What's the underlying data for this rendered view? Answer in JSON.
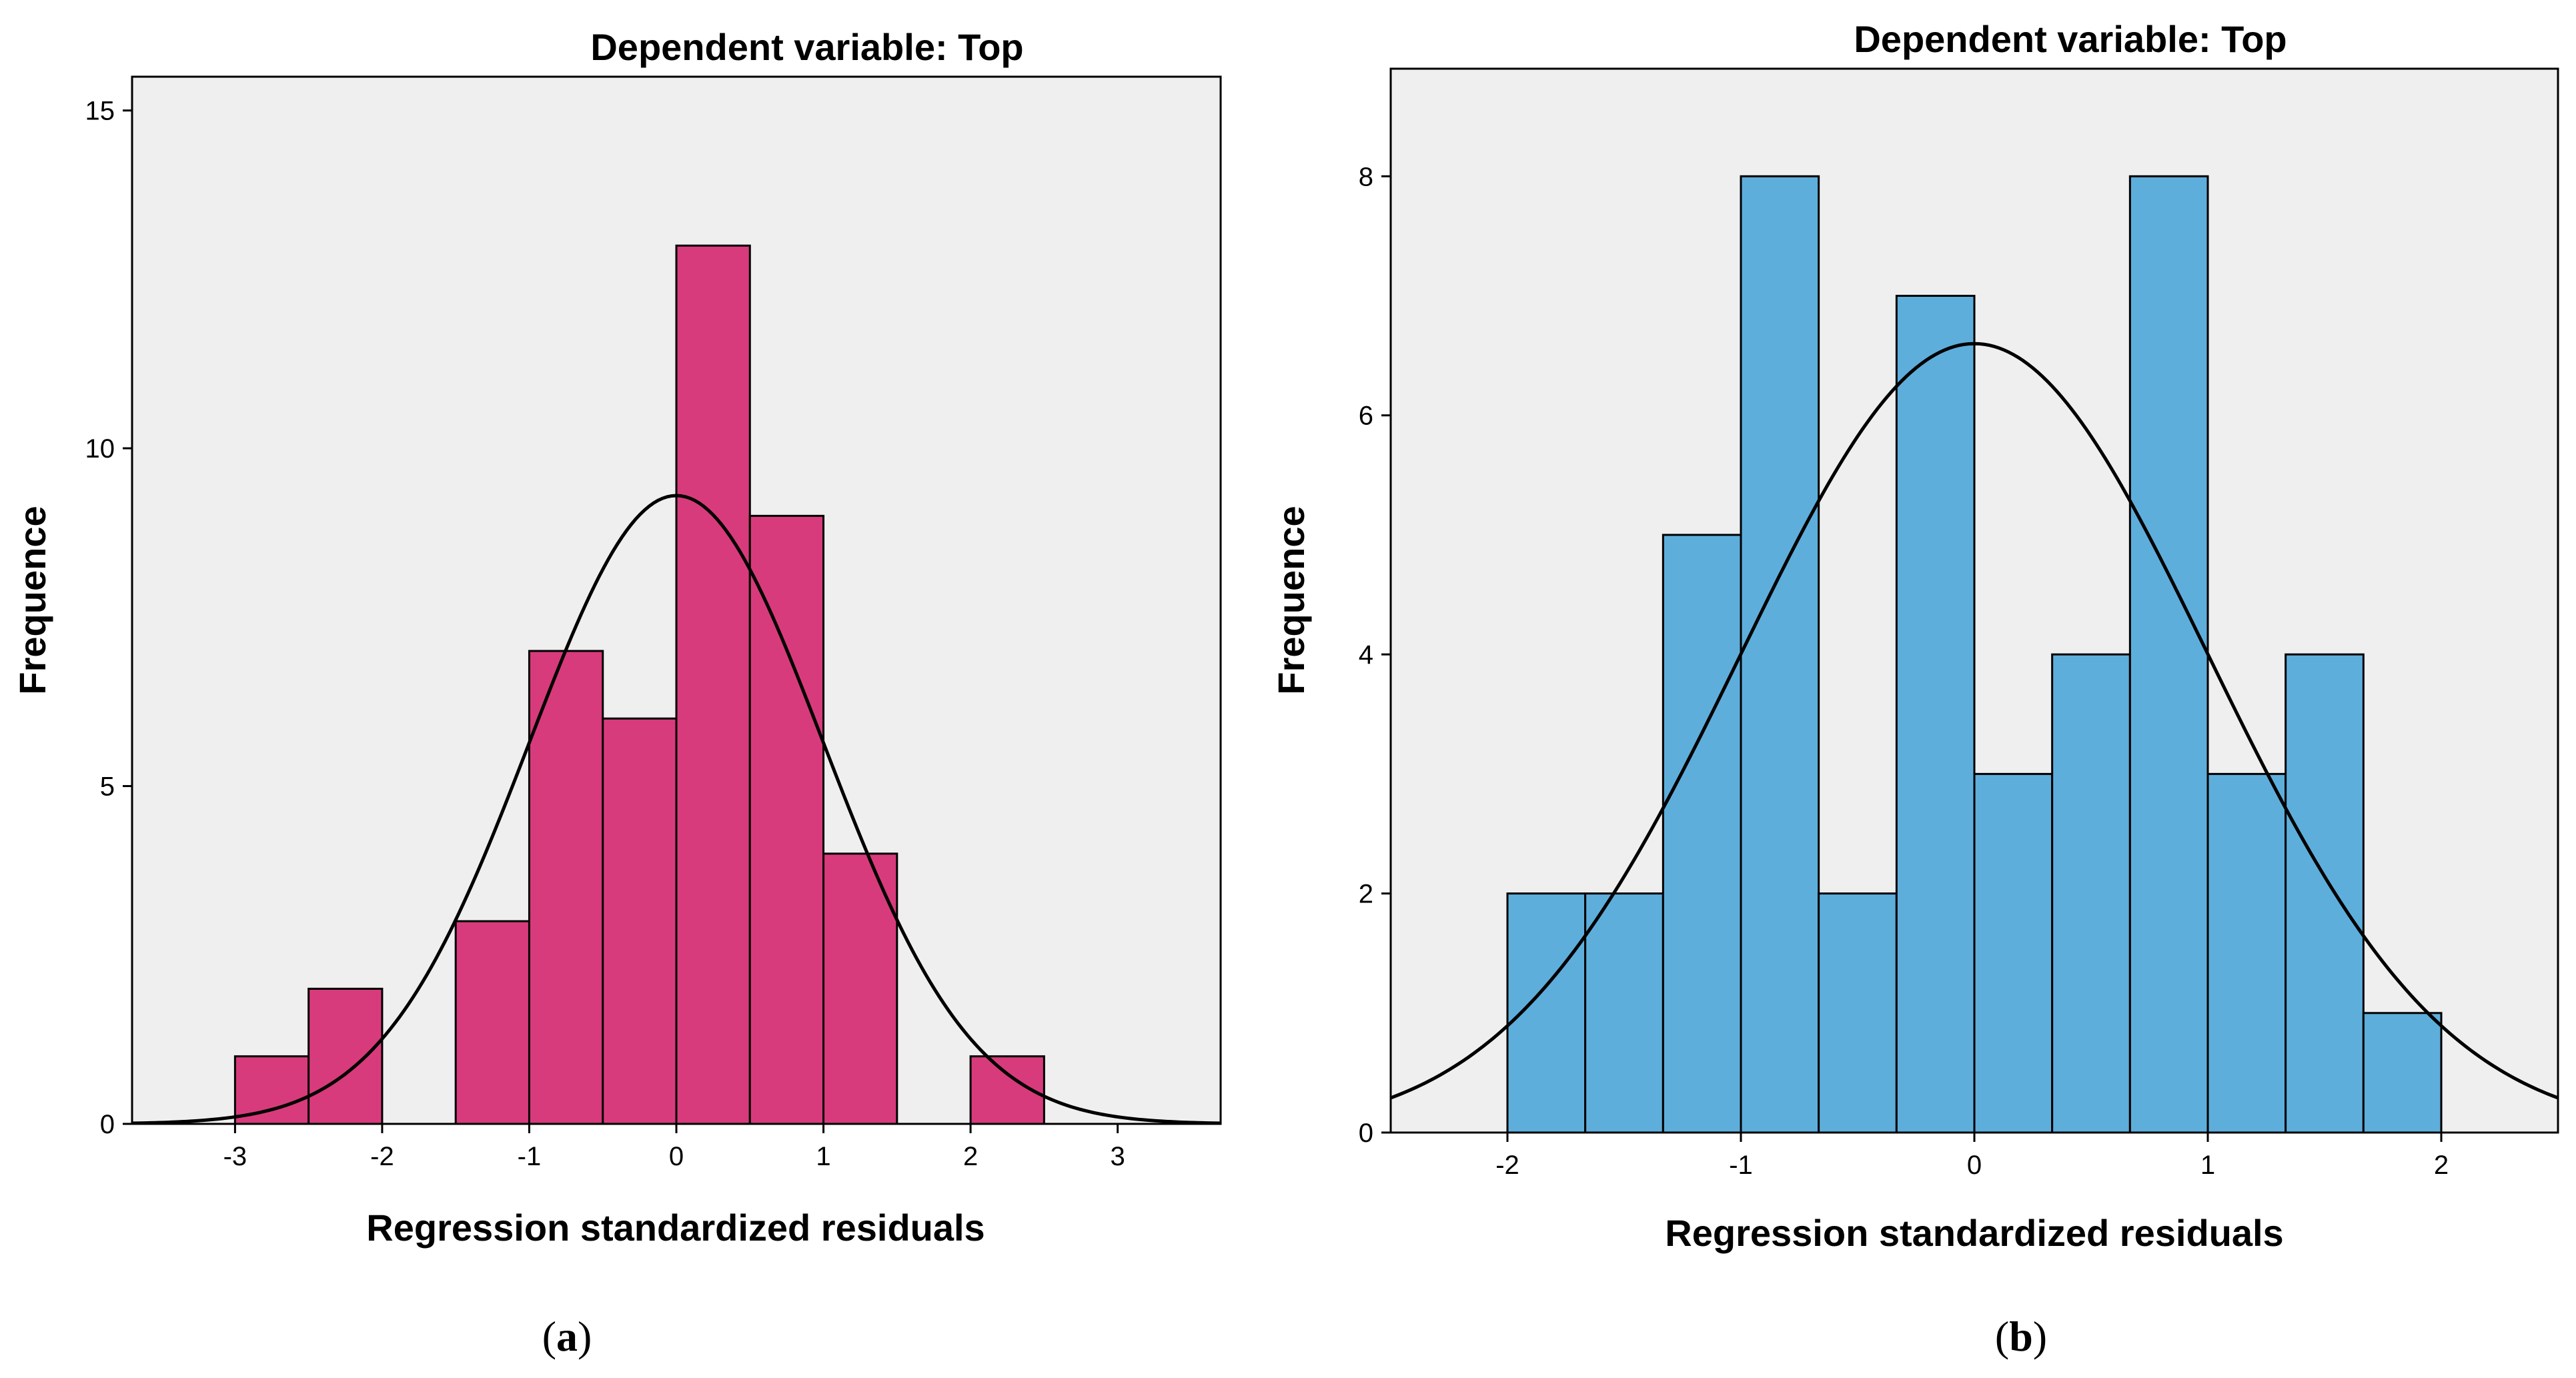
{
  "chart_data": [
    {
      "type": "bar",
      "subtype": "histogram",
      "panel": "a",
      "title": "Dependent variable: Top",
      "xlabel": "Regression standardized residuals",
      "ylabel": "Frequence",
      "panel_label_open": "(",
      "panel_label_letter": "a",
      "panel_label_close": ")",
      "color": "#d83b7c",
      "xlim": [
        -3.7,
        3.7
      ],
      "ylim": [
        0,
        15.5
      ],
      "xticks": [
        -3,
        -2,
        -1,
        0,
        1,
        2,
        3
      ],
      "yticks": [
        0,
        5,
        10,
        15
      ],
      "bin_width": 0.5,
      "bins": [
        {
          "start": -3.0,
          "end": -2.5,
          "count": 1
        },
        {
          "start": -2.5,
          "end": -2.0,
          "count": 2
        },
        {
          "start": -2.0,
          "end": -1.5,
          "count": 0
        },
        {
          "start": -1.5,
          "end": -1.0,
          "count": 3
        },
        {
          "start": -1.0,
          "end": -0.5,
          "count": 7
        },
        {
          "start": -0.5,
          "end": 0.0,
          "count": 6
        },
        {
          "start": 0.0,
          "end": 0.5,
          "count": 13
        },
        {
          "start": 0.5,
          "end": 1.0,
          "count": 9
        },
        {
          "start": 1.0,
          "end": 1.5,
          "count": 4
        },
        {
          "start": 1.5,
          "end": 2.0,
          "count": 0
        },
        {
          "start": 2.0,
          "end": 2.5,
          "count": 1
        }
      ],
      "normal_curve": {
        "mean": 0,
        "sd": 1,
        "peak": 9.3
      }
    },
    {
      "type": "bar",
      "subtype": "histogram",
      "panel": "b",
      "title": "Dependent variable: Top",
      "xlabel": "Regression standardized residuals",
      "ylabel": "Frequence",
      "panel_label_open": "(",
      "panel_label_letter": "b",
      "panel_label_close": ")",
      "color": "#5eaedc",
      "xlim": [
        -2.5,
        2.5
      ],
      "ylim": [
        0,
        8.9
      ],
      "xticks": [
        -2,
        -1,
        0,
        1,
        2
      ],
      "yticks": [
        0,
        2,
        4,
        6,
        8
      ],
      "bin_width": 0.3333,
      "bins": [
        {
          "start": -2.0,
          "end": -1.6667,
          "count": 2
        },
        {
          "start": -1.6667,
          "end": -1.3333,
          "count": 2
        },
        {
          "start": -1.3333,
          "end": -1.0,
          "count": 5
        },
        {
          "start": -1.0,
          "end": -0.6667,
          "count": 8
        },
        {
          "start": -0.6667,
          "end": -0.3333,
          "count": 2
        },
        {
          "start": -0.3333,
          "end": 0.0,
          "count": 7
        },
        {
          "start": 0.0,
          "end": 0.3333,
          "count": 3
        },
        {
          "start": 0.3333,
          "end": 0.6667,
          "count": 4
        },
        {
          "start": 0.6667,
          "end": 1.0,
          "count": 8
        },
        {
          "start": 1.0,
          "end": 1.3333,
          "count": 3
        },
        {
          "start": 1.3333,
          "end": 1.6667,
          "count": 4
        },
        {
          "start": 1.6667,
          "end": 2.0,
          "count": 1
        }
      ],
      "normal_curve": {
        "mean": 0,
        "sd": 1,
        "peak": 6.6
      }
    }
  ]
}
